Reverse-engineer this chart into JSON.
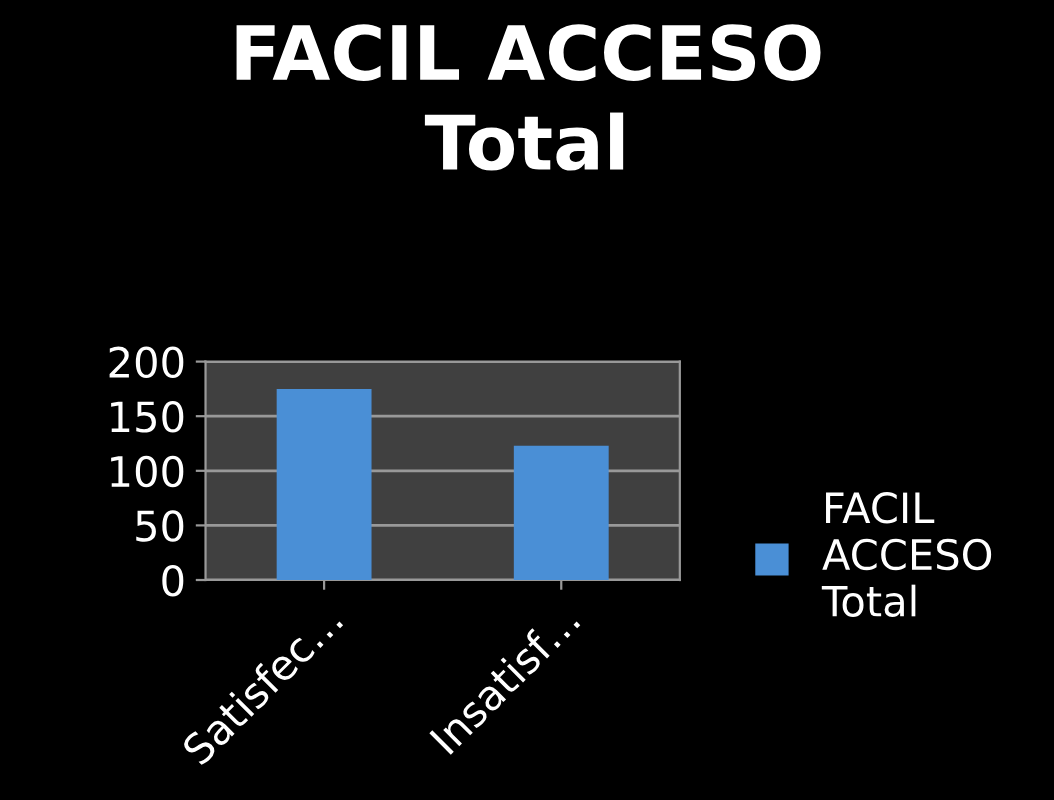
{
  "chart_data": {
    "type": "bar",
    "title": "FACIL ACCESO\nTotal",
    "categories": [
      "Satisfec…",
      "Insatisf…"
    ],
    "series": [
      {
        "name": "FACIL\nACCESO\nTotal",
        "color": "#4a8fd6",
        "values": [
          175,
          123
        ]
      }
    ],
    "ylim": [
      0,
      200
    ],
    "yticks": [
      0,
      50,
      100,
      150,
      200
    ],
    "grid": "y",
    "legend": "right"
  }
}
